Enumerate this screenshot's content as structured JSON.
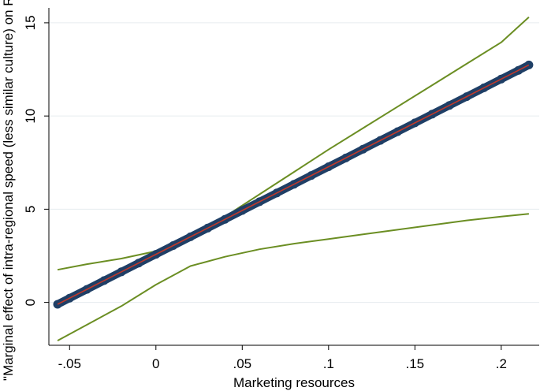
{
  "chart_data": {
    "type": "line",
    "title": "",
    "xlabel": "Marketing resources",
    "ylabel": "\"Marginal effect of intra-regional speed (less similar culture) on ROA\"",
    "xlim": [
      -0.062,
      0.222
    ],
    "ylim": [
      -2.3,
      15.8
    ],
    "xticks": [
      -0.05,
      0,
      0.05,
      0.1,
      0.15,
      0.2
    ],
    "xtick_labels": [
      "-.05",
      "0",
      ".05",
      ".1",
      ".15",
      ".2"
    ],
    "yticks": [
      0,
      5,
      10,
      15
    ],
    "ytick_labels": [
      "0",
      "5",
      "10",
      "15"
    ],
    "grid": "horizontal",
    "legend": "none",
    "colors": {
      "points": "#1f3f66",
      "fit_line": "#c0392b",
      "ci_lines": "#6b8e23",
      "grid": "#e6ecef"
    },
    "series": [
      {
        "role": "marginal-effect-points",
        "x": [
          -0.057,
          -0.05,
          -0.04,
          -0.03,
          -0.02,
          -0.01,
          0,
          0.01,
          0.02,
          0.03,
          0.04,
          0.05,
          0.06,
          0.07,
          0.08,
          0.09,
          0.1,
          0.11,
          0.12,
          0.13,
          0.14,
          0.15,
          0.16,
          0.17,
          0.18,
          0.19,
          0.2,
          0.21,
          0.216
        ],
        "y": [
          -0.1,
          0.23,
          0.7,
          1.17,
          1.64,
          2.11,
          2.58,
          3.05,
          3.52,
          3.99,
          4.46,
          4.93,
          5.4,
          5.87,
          6.34,
          6.81,
          7.28,
          7.75,
          8.22,
          8.69,
          9.16,
          9.63,
          10.1,
          10.57,
          11.04,
          11.51,
          11.98,
          12.45,
          12.74
        ]
      },
      {
        "role": "upper-confidence-bound",
        "x": [
          -0.057,
          -0.04,
          -0.02,
          0,
          0.02,
          0.04,
          0.06,
          0.08,
          0.1,
          0.12,
          0.14,
          0.16,
          0.18,
          0.2,
          0.216
        ],
        "y": [
          1.75,
          2.05,
          2.35,
          2.75,
          3.5,
          4.6,
          5.8,
          7.0,
          8.2,
          9.35,
          10.5,
          11.65,
          12.8,
          13.95,
          15.3
        ]
      },
      {
        "role": "lower-confidence-bound",
        "x": [
          -0.057,
          -0.04,
          -0.02,
          0,
          0.02,
          0.04,
          0.06,
          0.08,
          0.1,
          0.12,
          0.14,
          0.16,
          0.18,
          0.2,
          0.216
        ],
        "y": [
          -2.05,
          -1.2,
          -0.2,
          0.95,
          1.95,
          2.45,
          2.85,
          3.15,
          3.4,
          3.65,
          3.9,
          4.15,
          4.4,
          4.6,
          4.75
        ]
      }
    ]
  }
}
